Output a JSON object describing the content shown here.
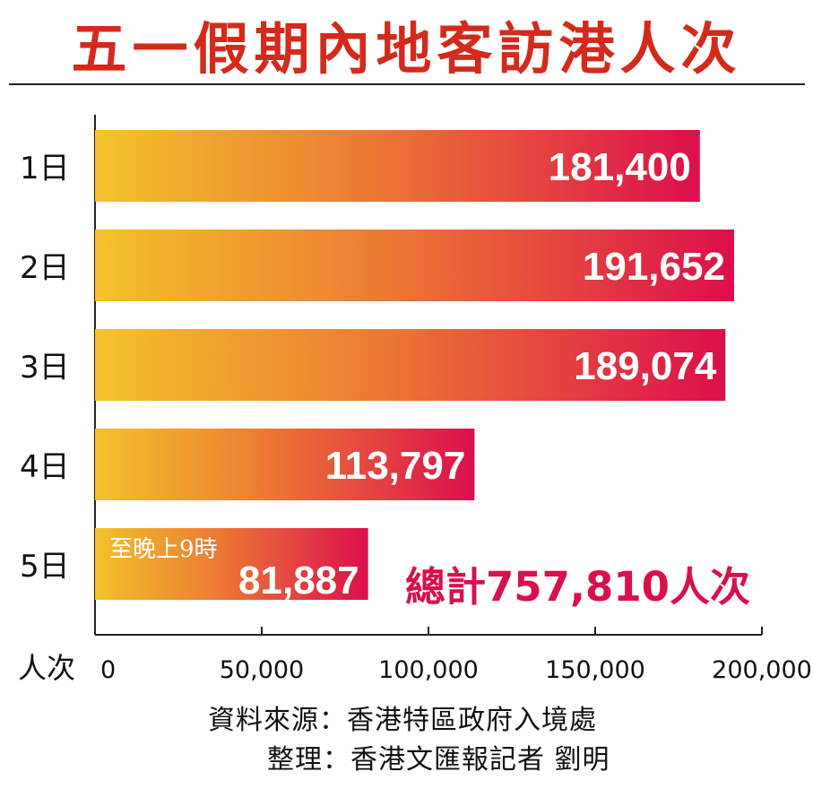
{
  "title": "五一假期內地客訪港人次",
  "chart_data": {
    "type": "bar",
    "orientation": "horizontal",
    "categories": [
      "1日",
      "2日",
      "3日",
      "4日",
      "5日"
    ],
    "values": [
      181400,
      191652,
      189074,
      113797,
      81887
    ],
    "value_labels": [
      "181,400",
      "191,652",
      "189,074",
      "113,797",
      "81,887"
    ],
    "bar_note": {
      "category": "5日",
      "text": "至晚上9時"
    },
    "xlabel": "人次",
    "xlim": [
      0,
      200000
    ],
    "xticks": [
      0,
      50000,
      100000,
      150000,
      200000
    ],
    "xtick_labels": [
      "0",
      "50,000",
      "100,000",
      "150,000",
      "200,000"
    ],
    "annotation": "總計757,810人次",
    "grid": false,
    "legend": "none",
    "colors": {
      "bar_start": "#f4c22b",
      "bar_mid": "#ec7a33",
      "bar_end": "#dc0f4c",
      "total_text": "#d8114a",
      "title": "#d42a1c"
    }
  },
  "source": {
    "line1": "資料來源：香港特區政府入境處",
    "line2": "整理：香港文匯報記者 劉明"
  }
}
